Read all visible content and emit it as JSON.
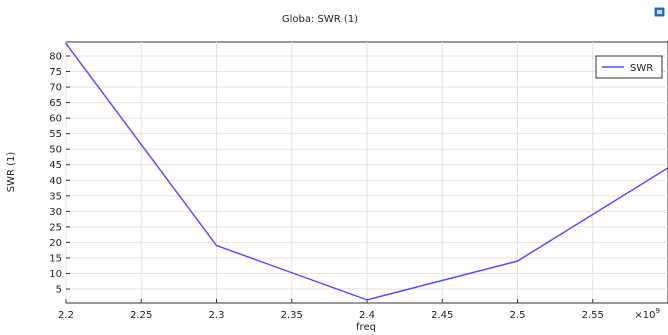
{
  "chart_data": {
    "type": "line",
    "title": "Globa: SWR (1)",
    "xlabel": "freq",
    "ylabel": "SWR (1)",
    "x_multiplier_label": "×10",
    "x_multiplier_exponent": "9",
    "x_ticks": [
      2.2,
      2.25,
      2.3,
      2.35,
      2.4,
      2.45,
      2.5,
      2.55
    ],
    "x_tick_labels": [
      "2.2",
      "2.25",
      "2.3",
      "2.35",
      "2.4",
      "2.45",
      "2.5",
      "2.55"
    ],
    "y_ticks": [
      5,
      10,
      15,
      20,
      25,
      30,
      35,
      40,
      45,
      50,
      55,
      60,
      65,
      70,
      75,
      80
    ],
    "y_tick_labels": [
      "5",
      "10",
      "15",
      "20",
      "25",
      "30",
      "35",
      "40",
      "45",
      "50",
      "55",
      "60",
      "65",
      "70",
      "75",
      "80"
    ],
    "xlim": [
      2.2,
      2.6
    ],
    "ylim": [
      0.5,
      84.5
    ],
    "grid": true,
    "legend_position": "top-right",
    "series": [
      {
        "name": "SWR",
        "color": "#4a4aff",
        "x": [
          2.2,
          2.3,
          2.4,
          2.5,
          2.6
        ],
        "y": [
          84,
          19,
          1.5,
          14,
          44
        ]
      }
    ]
  },
  "toolbar": {
    "icon": "plot-window-icon"
  }
}
